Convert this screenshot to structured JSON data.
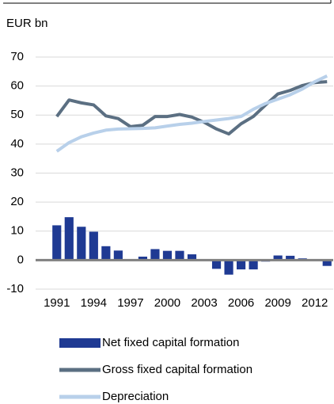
{
  "chart_data": {
    "type": "bar-line",
    "y_label": "EUR bn",
    "x": [
      1991,
      1992,
      1993,
      1994,
      1995,
      1996,
      1997,
      1998,
      1999,
      2000,
      2001,
      2002,
      2003,
      2004,
      2005,
      2006,
      2007,
      2008,
      2009,
      2010,
      2011,
      2012,
      2013
    ],
    "xlim": [
      1990.5,
      2013.5
    ],
    "xticks": [
      1991,
      1994,
      1997,
      2000,
      2003,
      2006,
      2009,
      2012
    ],
    "ylim": [
      -10,
      70
    ],
    "yticks": [
      -10,
      0,
      10,
      20,
      30,
      40,
      50,
      60,
      70
    ],
    "grid": true,
    "legend": "bottom",
    "series": [
      {
        "name": "Net fixed capital formation",
        "kind": "bar",
        "color": "#1f3a93",
        "values": [
          12,
          14.8,
          11.5,
          9.8,
          4.8,
          3.3,
          0.2,
          1.2,
          3.8,
          3.2,
          3.2,
          2,
          0,
          -3,
          -5,
          -3.2,
          -3.2,
          -0.5,
          1.6,
          1.5,
          0.6,
          0,
          -2
        ]
      },
      {
        "name": "Gross fixed capital formation",
        "kind": "line",
        "color": "#5b6f82",
        "values": [
          49.5,
          55.2,
          54.2,
          53.5,
          49.7,
          48.8,
          46,
          46.5,
          49.5,
          49.5,
          50.2,
          49.3,
          47.5,
          45.2,
          43.5,
          47,
          49.5,
          53.5,
          57.3,
          58.5,
          60.2,
          61.2,
          61.5
        ]
      },
      {
        "name": "Depreciation",
        "kind": "line",
        "color": "#b8d0ea",
        "values": [
          37.5,
          40.5,
          42.5,
          43.8,
          44.8,
          45.2,
          45.3,
          45.4,
          45.6,
          46.2,
          46.8,
          47.2,
          47.8,
          48.3,
          48.8,
          49.5,
          52,
          54,
          55.5,
          57,
          59,
          61.5,
          63.5
        ]
      }
    ]
  }
}
